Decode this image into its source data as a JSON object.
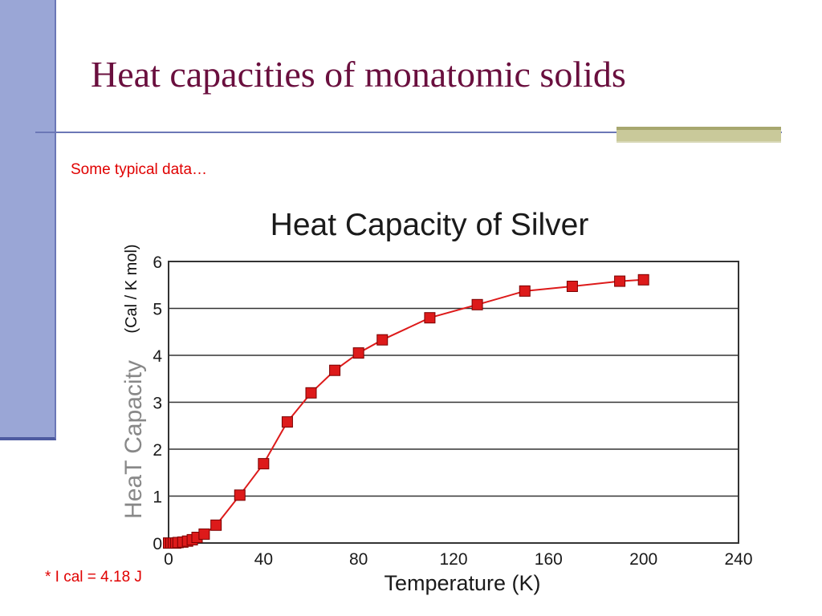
{
  "slide": {
    "title": "Heat capacities of monatomic solids",
    "subtitle": "Some typical data…",
    "footnote": "* I cal = 4.18 J"
  },
  "colors": {
    "title": "#6a0f3e",
    "accent_red": "#e00000",
    "side_bar": "#9aa6d6",
    "series": "#dd1a1a"
  },
  "chart_data": {
    "type": "line",
    "title": "Heat Capacity of Silver",
    "xlabel": "Temperature (K)",
    "ylabel": "HeaT Capacity",
    "ylabel_units": "(Cal / K mol)",
    "xlim": [
      0,
      240
    ],
    "ylim": [
      0,
      6
    ],
    "xticks": [
      0,
      40,
      80,
      120,
      160,
      200,
      240
    ],
    "yticks": [
      0,
      1,
      2,
      3,
      4,
      5,
      6
    ],
    "grid": "horizontal",
    "series": [
      {
        "x": [
          0,
          1,
          2,
          3,
          4,
          6,
          8,
          10,
          12,
          15,
          20,
          30,
          40,
          50,
          60,
          70,
          80,
          90,
          110,
          130,
          150,
          170,
          190,
          200
        ],
        "y": [
          0,
          0,
          0,
          0,
          0.01,
          0.02,
          0.04,
          0.07,
          0.12,
          0.19,
          0.38,
          1.02,
          1.69,
          2.58,
          3.2,
          3.68,
          4.05,
          4.33,
          4.8,
          5.08,
          5.37,
          5.47,
          5.58,
          5.61
        ]
      }
    ]
  }
}
